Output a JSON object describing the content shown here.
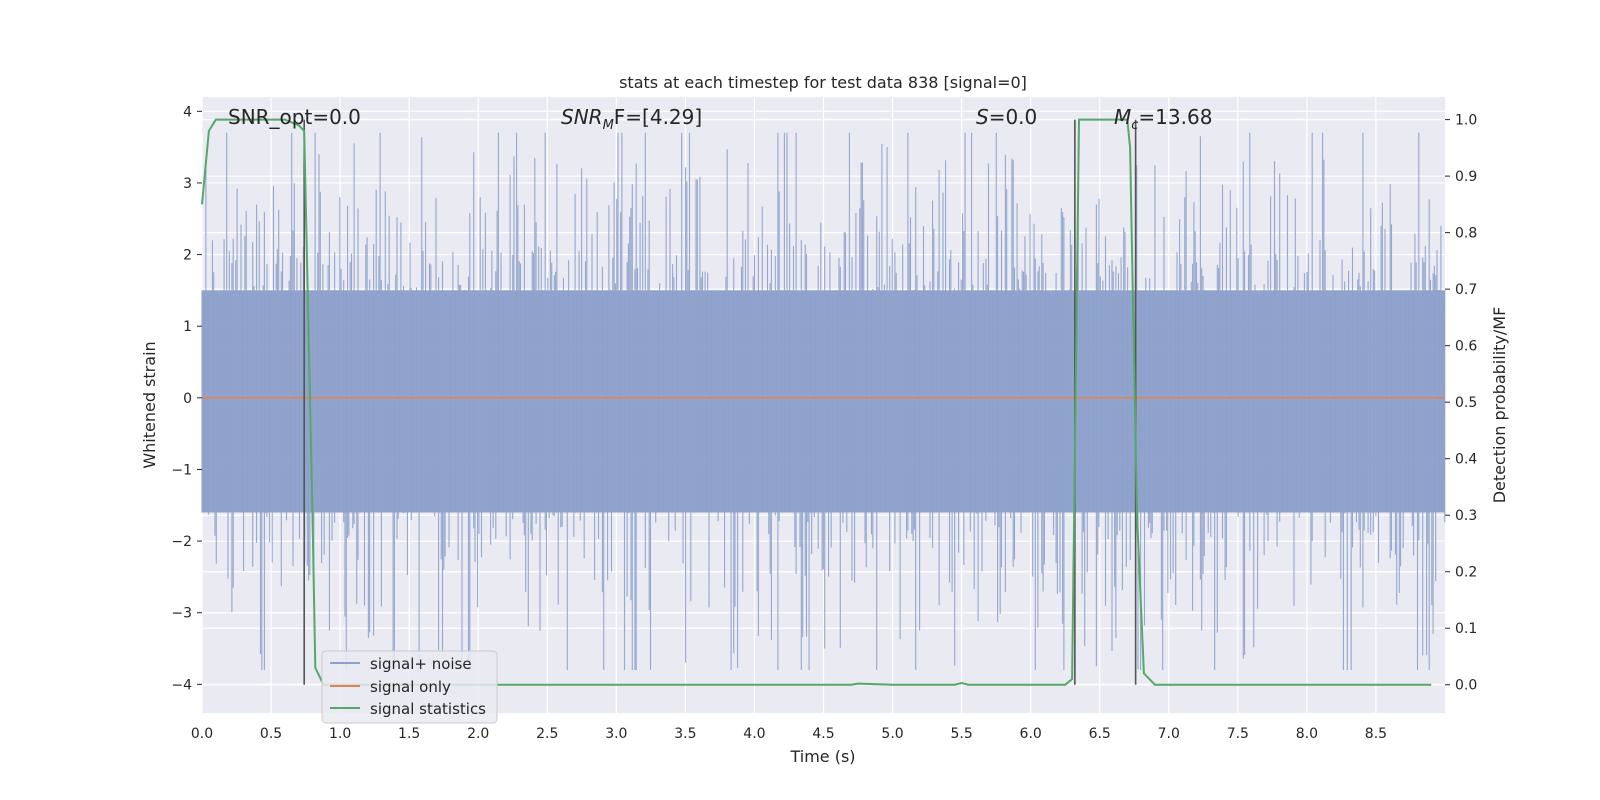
{
  "chart_data": {
    "type": "line",
    "title": "stats at each timestep for test data 838 [signal=0]",
    "xlabel": "Time (s)",
    "ylabel_left": "Whitened strain",
    "ylabel_right": "Detection probability/MF",
    "xlim": [
      0.0,
      9.0
    ],
    "ylim_left": [
      -4.4,
      4.2
    ],
    "ylim_right": [
      -0.05,
      1.04
    ],
    "x_ticks": [
      "0.0",
      "0.5",
      "1.0",
      "1.5",
      "2.0",
      "2.5",
      "3.0",
      "3.5",
      "4.0",
      "4.5",
      "5.0",
      "5.5",
      "6.0",
      "6.5",
      "7.0",
      "7.5",
      "8.0",
      "8.5"
    ],
    "y_left_ticks": [
      "−4",
      "−3",
      "−2",
      "−1",
      "0",
      "1",
      "2",
      "3",
      "4"
    ],
    "y_right_ticks": [
      "0.0",
      "0.1",
      "0.2",
      "0.3",
      "0.4",
      "0.5",
      "0.6",
      "0.7",
      "0.8",
      "0.9",
      "1.0"
    ],
    "grid": true,
    "legend_position": "lower-left",
    "annotations": {
      "snr_opt": "SNR_opt=0.0",
      "snr_mf_base": "SNR",
      "snr_mf_sub": "M",
      "snr_mf_tail": "F=[4.29]",
      "s": "S",
      "s_tail": "=0.0",
      "mc": "M",
      "mc_sub": "c",
      "mc_tail": "=13.68"
    },
    "series": [
      {
        "name": "signal+ noise",
        "color": "#8da0cb",
        "description_values": "whitened noise, approx. ±1.6 typical, peaks to about ±3.8",
        "band_left": [
          -1.6,
          1.5
        ],
        "peak_envelope_left": [
          -3.8,
          3.7
        ]
      },
      {
        "name": "signal only",
        "color": "#dd8452",
        "x": [
          0.0,
          9.0
        ],
        "y_left": [
          0.0,
          0.0
        ]
      },
      {
        "name": "signal statistics",
        "color": "#55a868",
        "x": [
          0.0,
          0.05,
          0.1,
          0.2,
          0.3,
          0.4,
          0.5,
          0.6,
          0.7,
          0.74,
          0.8,
          0.82,
          0.88,
          1.0,
          2.0,
          3.0,
          4.0,
          4.7,
          4.75,
          5.0,
          5.45,
          5.5,
          5.55,
          6.0,
          6.25,
          6.3,
          6.35,
          6.4,
          6.5,
          6.6,
          6.7,
          6.72,
          6.77,
          6.82,
          6.9,
          7.0,
          8.0,
          8.9
        ],
        "y_right": [
          0.85,
          0.98,
          1.0,
          1.0,
          1.0,
          1.0,
          1.0,
          1.0,
          0.99,
          0.98,
          0.3,
          0.03,
          0.0,
          0.0,
          0.0,
          0.0,
          0.0,
          0.0,
          0.002,
          0.0,
          0.0,
          0.003,
          0.0,
          0.0,
          0.0,
          0.01,
          1.0,
          1.0,
          1.0,
          1.0,
          1.0,
          0.95,
          0.3,
          0.02,
          0.0,
          0.0,
          0.0,
          0.0
        ]
      }
    ],
    "vertical_lines_x": [
      0.74,
      6.32,
      6.76
    ],
    "legend": [
      "signal+ noise",
      "signal only",
      "signal statistics"
    ]
  }
}
